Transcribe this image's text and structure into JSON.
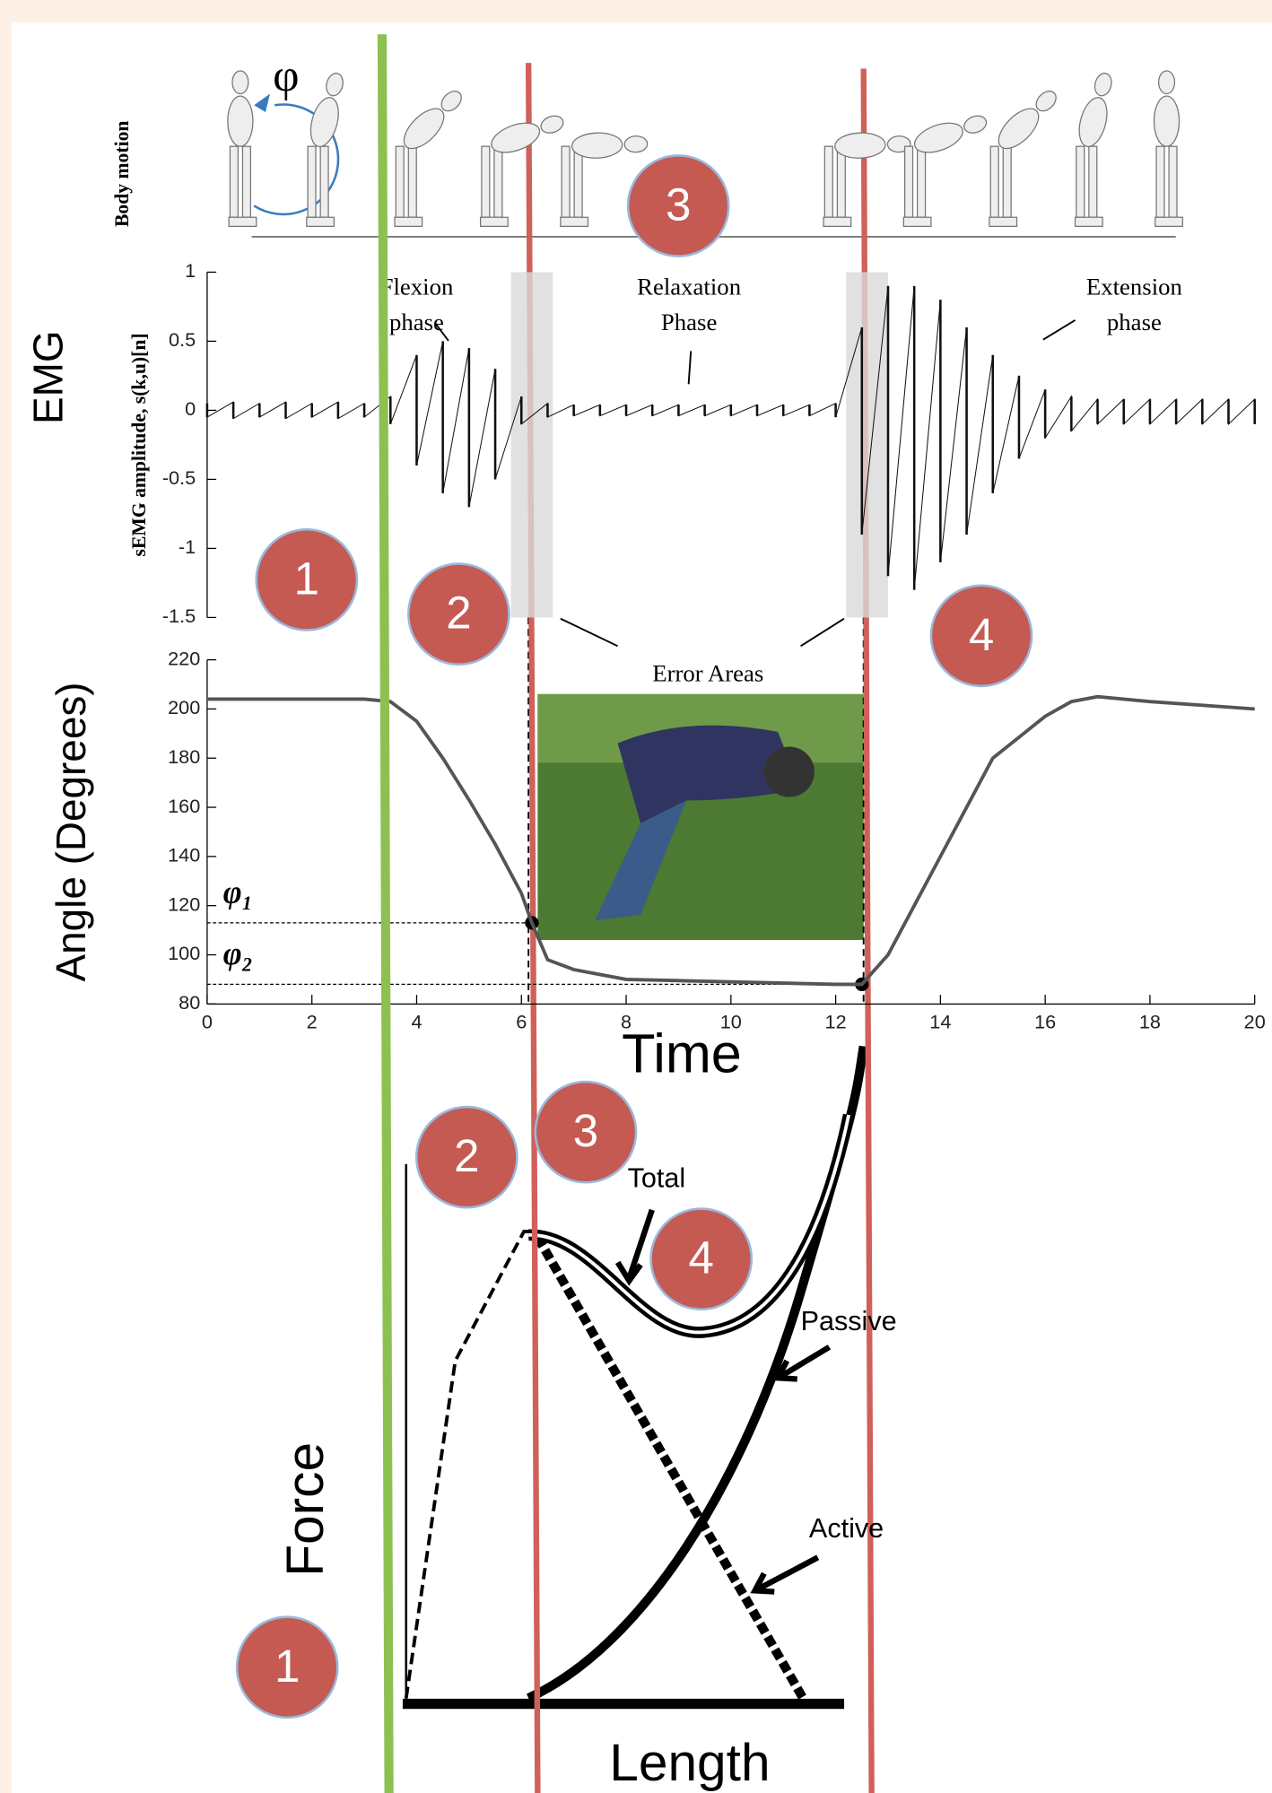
{
  "figure": {
    "phi_symbol": "φ",
    "body_motion_label": "Body motion",
    "emg_label": "EMG",
    "time_label": "Time",
    "force_label": "Force",
    "length_label": "Length",
    "total_label": "Total",
    "passive_label": "Passive",
    "active_label": "Active",
    "markers": [
      "1",
      "2",
      "3",
      "4",
      "2",
      "3",
      "4",
      "1"
    ]
  },
  "chart_data": [
    {
      "type": "range",
      "ylabel": "sEMG amplitude, s(k,u)[n]",
      "xlim": [
        0,
        20
      ],
      "ylim": [
        -1.5,
        1
      ],
      "yticks": [
        1,
        0.5,
        0,
        -0.5,
        -1,
        -1.5
      ],
      "x": [
        0,
        0.5,
        1,
        1.5,
        2,
        2.5,
        3,
        3.5,
        4,
        4.5,
        5,
        5.5,
        6,
        6.5,
        7,
        7.5,
        8,
        8.5,
        9,
        9.5,
        10,
        10.5,
        11,
        11.5,
        12,
        12.5,
        13,
        13.5,
        14,
        14.5,
        15,
        15.5,
        16,
        16.5,
        17,
        17.5,
        18,
        18.5,
        19,
        19.5,
        20
      ],
      "upper": [
        0.05,
        0.06,
        0.05,
        0.06,
        0.05,
        0.06,
        0.05,
        0.1,
        0.4,
        0.5,
        0.45,
        0.3,
        0.1,
        0.05,
        0.04,
        0.04,
        0.04,
        0.04,
        0.04,
        0.04,
        0.04,
        0.04,
        0.04,
        0.04,
        0.05,
        0.6,
        0.9,
        0.9,
        0.8,
        0.6,
        0.4,
        0.25,
        0.15,
        0.1,
        0.08,
        0.08,
        0.08,
        0.08,
        0.08,
        0.08,
        0.08
      ],
      "lower": [
        -0.05,
        -0.06,
        -0.05,
        -0.06,
        -0.05,
        -0.06,
        -0.05,
        -0.1,
        -0.4,
        -0.6,
        -0.7,
        -0.5,
        -0.1,
        -0.05,
        -0.04,
        -0.04,
        -0.04,
        -0.04,
        -0.04,
        -0.04,
        -0.04,
        -0.04,
        -0.04,
        -0.04,
        -0.05,
        -0.9,
        -1.2,
        -1.3,
        -1.1,
        -0.9,
        -0.6,
        -0.35,
        -0.2,
        -0.15,
        -0.1,
        -0.1,
        -0.1,
        -0.1,
        -0.1,
        -0.1,
        -0.1
      ],
      "error_areas": [
        [
          5.8,
          6.6
        ],
        [
          12.2,
          13.0
        ]
      ],
      "annotations": [
        {
          "lines": [
            "Flexion",
            "phase"
          ],
          "x": 4.0
        },
        {
          "lines": [
            "Relaxation",
            "Phase"
          ],
          "x": 9.2
        },
        {
          "lines": [
            "Extension",
            "phase"
          ],
          "x": 17.7
        }
      ],
      "error_label": "Error Areas"
    },
    {
      "type": "line",
      "ylabel": "Angle (Degrees)",
      "xlim": [
        0,
        20
      ],
      "ylim": [
        80,
        220
      ],
      "xticks": [
        0,
        2,
        4,
        6,
        8,
        10,
        12,
        14,
        16,
        18,
        20
      ],
      "yticks": [
        80,
        100,
        120,
        140,
        160,
        180,
        200,
        220
      ],
      "x": [
        0,
        3,
        3.5,
        4,
        4.5,
        5,
        5.5,
        6,
        6.2,
        6.5,
        7,
        8,
        10,
        12,
        12.5,
        13,
        13.5,
        14,
        14.5,
        15,
        16,
        16.5,
        17,
        18,
        20
      ],
      "values": [
        204,
        204,
        203,
        195,
        180,
        163,
        145,
        125,
        113,
        98,
        94,
        90,
        89,
        88,
        88,
        100,
        120,
        140,
        160,
        180,
        197,
        203,
        205,
        203,
        200
      ],
      "color": "#555555",
      "reference_lines": [
        {
          "label": "φ₁",
          "value": 113,
          "x": 6.2
        },
        {
          "label": "φ₂",
          "value": 88,
          "x": 12.5
        }
      ]
    }
  ]
}
